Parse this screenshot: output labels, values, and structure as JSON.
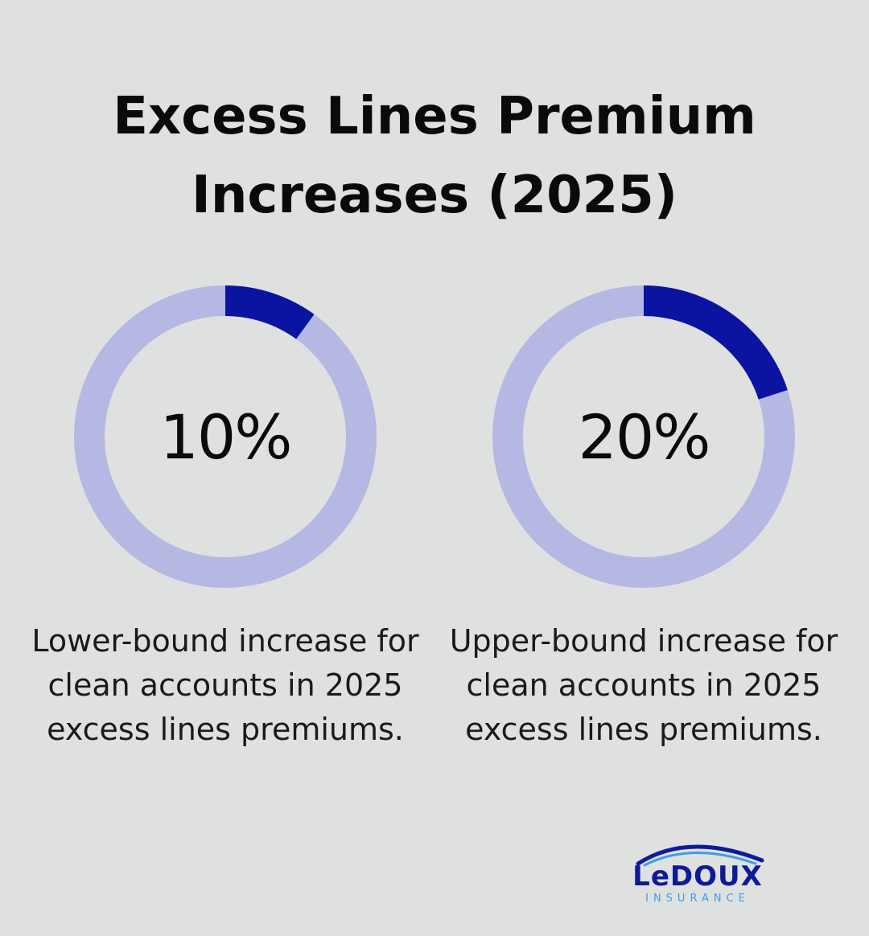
{
  "title": {
    "line1": "Excess Lines Premium",
    "line2": "Increases (2025)"
  },
  "colors": {
    "track": "#b4b8e2",
    "fill": "#0a14a0",
    "background": "#dfe1e0"
  },
  "chart_data": [
    {
      "type": "pie",
      "value": 10,
      "max": 100,
      "label": "10%",
      "caption": [
        "Lower-bound increase for",
        "clean accounts in 2025",
        "excess lines premiums."
      ]
    },
    {
      "type": "pie",
      "value": 20,
      "max": 100,
      "label": "20%",
      "caption": [
        "Upper-bound increase for",
        "clean accounts in 2025",
        "excess lines premiums."
      ]
    }
  ],
  "logo": {
    "name": "LeDOUX",
    "sub": "INSURANCE",
    "icon": "arc-swoosh-icon"
  }
}
